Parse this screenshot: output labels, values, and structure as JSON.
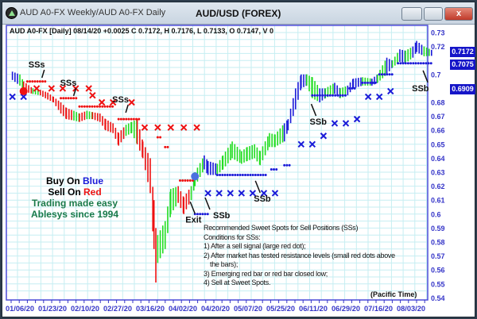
{
  "window": {
    "title": "AUD A0-FX Weekly/AUD A0-FX Daily",
    "chart_title": "AUD/USD (FOREX)",
    "close_label": "x"
  },
  "info_line": "AUD A0-FX [Daily] 08/14/20  +0.0025 C 0.7172, H 0.7176, L 0.7133, O 0.7147, V 0",
  "price_boxes": [
    "0.7172",
    "0.7075",
    "0.6909"
  ],
  "legend": {
    "buy_prefix": "Buy On ",
    "buy_word": "Blue",
    "sell_prefix": "Sell On ",
    "sell_word": "Red",
    "tag1": "Trading made easy",
    "tag2": "Ablesys since 1994"
  },
  "notes": [
    "Recommended Sweet Spots for Sell Positions (SSs)",
    "Conditions for SSs:",
    "1) After a sell signal (large red dot);",
    "2) After market has tested resistance levels (small red dots above",
    "the bars);",
    "3) Emerging red bar or red bar closed low;",
    "4) Sell at Sweet Spots."
  ],
  "pacific_time": "(Pacific Time)",
  "colors": {
    "red": "#ee1111",
    "green": "#22dd22",
    "blue": "#1a1ad8",
    "grid": "#c6eef2",
    "axis": "#3535c8",
    "border": "#4a4ad8",
    "legend_green": "#1a7a4a"
  },
  "chart_data": {
    "type": "bar",
    "ylim": [
      0.54,
      0.73
    ],
    "yticks": [
      "0.73",
      "0.72",
      "0.7",
      "0.68",
      "0.67",
      "0.66",
      "0.65",
      "0.64",
      "0.63",
      "0.62",
      "0.61",
      "0.6",
      "0.59",
      "0.58",
      "0.57",
      "0.56",
      "0.55",
      "0.54"
    ],
    "xticks": [
      "01/06/20",
      "01/23/20",
      "02/10/20",
      "02/27/20",
      "03/16/20",
      "04/02/20",
      "04/20/20",
      "05/07/20",
      "05/25/20",
      "06/11/20",
      "06/29/20",
      "07/16/20",
      "08/03/20"
    ],
    "bars": [
      [
        "2020-01-02",
        0.702,
        0.696,
        "b"
      ],
      [
        "2020-01-06",
        0.7,
        0.692,
        "g"
      ],
      [
        "2020-01-08",
        0.695,
        0.688,
        "r"
      ],
      [
        "2020-01-13",
        0.69,
        0.686,
        "g"
      ],
      [
        "2020-01-17",
        0.689,
        0.685,
        "r"
      ],
      [
        "2020-01-21",
        0.687,
        0.682,
        "r"
      ],
      [
        "2020-01-24",
        0.684,
        0.68,
        "r"
      ],
      [
        "2020-01-28",
        0.68,
        0.672,
        "r"
      ],
      [
        "2020-01-31",
        0.676,
        0.668,
        "r"
      ],
      [
        "2020-02-04",
        0.674,
        0.667,
        "g"
      ],
      [
        "2020-02-07",
        0.672,
        0.666,
        "r"
      ],
      [
        "2020-02-11",
        0.674,
        0.668,
        "g"
      ],
      [
        "2020-02-14",
        0.673,
        0.668,
        "r"
      ],
      [
        "2020-02-18",
        0.672,
        0.666,
        "r"
      ],
      [
        "2020-02-21",
        0.668,
        0.66,
        "r"
      ],
      [
        "2020-02-25",
        0.665,
        0.658,
        "r"
      ],
      [
        "2020-02-28",
        0.658,
        0.649,
        "r"
      ],
      [
        "2020-03-03",
        0.664,
        0.656,
        "g"
      ],
      [
        "2020-03-06",
        0.666,
        0.658,
        "g"
      ],
      [
        "2020-03-09",
        0.668,
        0.65,
        "r"
      ],
      [
        "2020-03-12",
        0.652,
        0.64,
        "r"
      ],
      [
        "2020-03-16",
        0.64,
        0.615,
        "r"
      ],
      [
        "2020-03-18",
        0.61,
        0.575,
        "r"
      ],
      [
        "2020-03-19",
        0.59,
        0.551,
        "r"
      ],
      [
        "2020-03-20",
        0.585,
        0.565,
        "g"
      ],
      [
        "2020-03-24",
        0.595,
        0.575,
        "g"
      ],
      [
        "2020-03-27",
        0.618,
        0.6,
        "g"
      ],
      [
        "2020-03-31",
        0.62,
        0.608,
        "r"
      ],
      [
        "2020-04-03",
        0.612,
        0.6,
        "r"
      ],
      [
        "2020-04-07",
        0.62,
        0.61,
        "g"
      ],
      [
        "2020-04-09",
        0.63,
        0.62,
        "g"
      ],
      [
        "2020-04-14",
        0.642,
        0.632,
        "b"
      ],
      [
        "2020-04-16",
        0.638,
        0.628,
        "b"
      ],
      [
        "2020-04-21",
        0.636,
        0.628,
        "g"
      ],
      [
        "2020-04-24",
        0.642,
        0.632,
        "g"
      ],
      [
        "2020-04-29",
        0.652,
        0.64,
        "g"
      ],
      [
        "2020-05-04",
        0.645,
        0.636,
        "g"
      ],
      [
        "2020-05-07",
        0.648,
        0.638,
        "g"
      ],
      [
        "2020-05-11",
        0.65,
        0.64,
        "g"
      ],
      [
        "2020-05-14",
        0.645,
        0.635,
        "g"
      ],
      [
        "2020-05-19",
        0.658,
        0.648,
        "g"
      ],
      [
        "2020-05-22",
        0.657,
        0.648,
        "g"
      ],
      [
        "2020-05-27",
        0.665,
        0.652,
        "b"
      ],
      [
        "2020-05-29",
        0.668,
        0.66,
        "b"
      ],
      [
        "2020-06-02",
        0.69,
        0.675,
        "b"
      ],
      [
        "2020-06-05",
        0.7,
        0.69,
        "b"
      ],
      [
        "2020-06-08",
        0.7,
        0.692,
        "g"
      ],
      [
        "2020-06-11",
        0.698,
        0.683,
        "g"
      ],
      [
        "2020-06-15",
        0.69,
        0.68,
        "b"
      ],
      [
        "2020-06-18",
        0.69,
        0.683,
        "g"
      ],
      [
        "2020-06-23",
        0.694,
        0.686,
        "b"
      ],
      [
        "2020-06-26",
        0.69,
        0.683,
        "g"
      ],
      [
        "2020-06-30",
        0.692,
        0.685,
        "b"
      ],
      [
        "2020-07-03",
        0.697,
        0.69,
        "b"
      ],
      [
        "2020-07-08",
        0.698,
        0.692,
        "g"
      ],
      [
        "2020-07-13",
        0.697,
        0.692,
        "b"
      ],
      [
        "2020-07-16",
        0.7,
        0.694,
        "g"
      ],
      [
        "2020-07-21",
        0.712,
        0.7,
        "b"
      ],
      [
        "2020-07-24",
        0.71,
        0.705,
        "g"
      ],
      [
        "2020-07-28",
        0.718,
        0.709,
        "b"
      ],
      [
        "2020-07-31",
        0.717,
        0.708,
        "g"
      ],
      [
        "2020-08-04",
        0.72,
        0.712,
        "b"
      ],
      [
        "2020-08-06",
        0.724,
        0.716,
        "b"
      ],
      [
        "2020-08-10",
        0.72,
        0.713,
        "g"
      ],
      [
        "2020-08-14",
        0.7176,
        0.7133,
        "b"
      ]
    ],
    "resistance_dots": [
      [
        "2020-01-10",
        "2020-01-20",
        0.695
      ],
      [
        "2020-01-28",
        "2020-02-06",
        0.683
      ],
      [
        "2020-02-07",
        "2020-02-25",
        0.677
      ],
      [
        "2020-02-28",
        "2020-03-10",
        0.668
      ],
      [
        "2020-03-20",
        "2020-03-22",
        0.655
      ],
      [
        "2020-03-24",
        "2020-03-26",
        0.648
      ],
      [
        "2020-04-01",
        "2020-04-09",
        0.624
      ]
    ],
    "support_dots": [
      [
        "2020-04-09",
        "2020-04-16",
        0.6
      ],
      [
        "2020-04-21",
        "2020-05-18",
        0.628
      ],
      [
        "2020-05-20",
        "2020-05-24",
        0.632
      ],
      [
        "2020-05-27",
        "2020-05-31",
        0.635
      ],
      [
        "2020-06-11",
        "2020-06-29",
        0.685
      ],
      [
        "2020-07-01",
        "2020-07-05",
        0.69
      ],
      [
        "2020-07-08",
        "2020-07-15",
        0.694
      ],
      [
        "2020-07-17",
        "2020-07-24",
        0.7
      ],
      [
        "2020-07-27",
        "2020-08-14",
        0.708
      ]
    ],
    "red_x": [
      [
        "2020-01-15",
        0.69
      ],
      [
        "2020-01-23",
        0.69
      ],
      [
        "2020-01-29",
        0.69
      ],
      [
        "2020-02-05",
        0.69
      ],
      [
        "2020-02-12",
        0.69
      ],
      [
        "2020-02-14",
        0.685
      ],
      [
        "2020-02-19",
        0.68
      ],
      [
        "2020-02-25",
        0.68
      ],
      [
        "2020-03-06",
        0.68
      ],
      [
        "2020-03-13",
        0.662
      ],
      [
        "2020-03-20",
        0.662
      ],
      [
        "2020-03-27",
        0.662
      ],
      [
        "2020-04-03",
        0.662
      ],
      [
        "2020-04-10",
        0.662
      ]
    ],
    "blue_x": [
      [
        "2020-01-02",
        0.684
      ],
      [
        "2020-01-08",
        0.684
      ],
      [
        "2020-04-16",
        0.615
      ],
      [
        "2020-04-22",
        0.615
      ],
      [
        "2020-04-28",
        0.615
      ],
      [
        "2020-05-04",
        0.615
      ],
      [
        "2020-05-10",
        0.615
      ],
      [
        "2020-05-16",
        0.615
      ],
      [
        "2020-05-22",
        0.615
      ],
      [
        "2020-06-05",
        0.65
      ],
      [
        "2020-06-11",
        0.65
      ],
      [
        "2020-06-17",
        0.656
      ],
      [
        "2020-06-23",
        0.665
      ],
      [
        "2020-06-29",
        0.665
      ],
      [
        "2020-07-05",
        0.668
      ],
      [
        "2020-07-11",
        0.684
      ],
      [
        "2020-07-17",
        0.684
      ],
      [
        "2020-07-23",
        0.688
      ]
    ],
    "sell_signal": [
      "2020-01-08",
      0.688
    ],
    "exit_signal": [
      "2020-04-09",
      0.627
    ],
    "annotations": [
      {
        "text": "SSs",
        "date": "2020-01-14",
        "price": 0.705
      },
      {
        "text": "SSs",
        "date": "2020-01-31",
        "price": 0.692
      },
      {
        "text": "SSs",
        "date": "2020-02-28",
        "price": 0.68
      },
      {
        "text": "Exit",
        "date": "2020-04-09",
        "price": 0.602
      },
      {
        "text": "SSb",
        "date": "2020-04-17",
        "price": 0.605
      },
      {
        "text": "SSb",
        "date": "2020-05-14",
        "price": 0.617
      },
      {
        "text": "SSb",
        "date": "2020-06-13",
        "price": 0.672
      },
      {
        "text": "SSb",
        "date": "2020-08-12",
        "price": 0.696
      }
    ]
  }
}
